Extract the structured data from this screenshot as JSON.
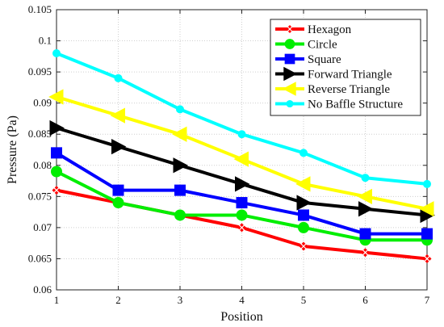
{
  "chart_data": {
    "type": "line",
    "title": "",
    "xlabel": "Position",
    "ylabel": "Pressure (Pa)",
    "xlim": [
      1,
      7
    ],
    "ylim": [
      0.06,
      0.105
    ],
    "x": [
      1,
      2,
      3,
      4,
      5,
      6,
      7
    ],
    "xticks": [
      "1",
      "2",
      "3",
      "4",
      "5",
      "6",
      "7"
    ],
    "yticks": [
      "0.06",
      "0.065",
      "0.07",
      "0.075",
      "0.08",
      "0.085",
      "0.09",
      "0.095",
      "0.1",
      "0.105"
    ],
    "grid": true,
    "legend_position": "top-right",
    "series": [
      {
        "name": "Hexagon",
        "color": "#ff0000",
        "marker": "x-diamond",
        "values": [
          0.076,
          0.074,
          0.072,
          0.07,
          0.067,
          0.066,
          0.065
        ]
      },
      {
        "name": "Circle",
        "color": "#00ee00",
        "marker": "circle",
        "values": [
          0.079,
          0.074,
          0.072,
          0.072,
          0.07,
          0.068,
          0.068
        ]
      },
      {
        "name": "Square",
        "color": "#0000ff",
        "marker": "square",
        "values": [
          0.082,
          0.076,
          0.076,
          0.074,
          0.072,
          0.069,
          0.069
        ]
      },
      {
        "name": "Forward Triangle",
        "color": "#000000",
        "marker": "triangle-right",
        "values": [
          0.086,
          0.083,
          0.08,
          0.077,
          0.074,
          0.073,
          0.072
        ]
      },
      {
        "name": "Reverse Triangle",
        "color": "#ffff00",
        "marker": "triangle-left",
        "values": [
          0.091,
          0.088,
          0.085,
          0.081,
          0.077,
          0.075,
          0.073
        ]
      },
      {
        "name": "No Baffle Structure",
        "color": "#00ffff",
        "marker": "dot",
        "values": [
          0.098,
          0.094,
          0.089,
          0.085,
          0.082,
          0.078,
          0.077
        ]
      }
    ]
  }
}
